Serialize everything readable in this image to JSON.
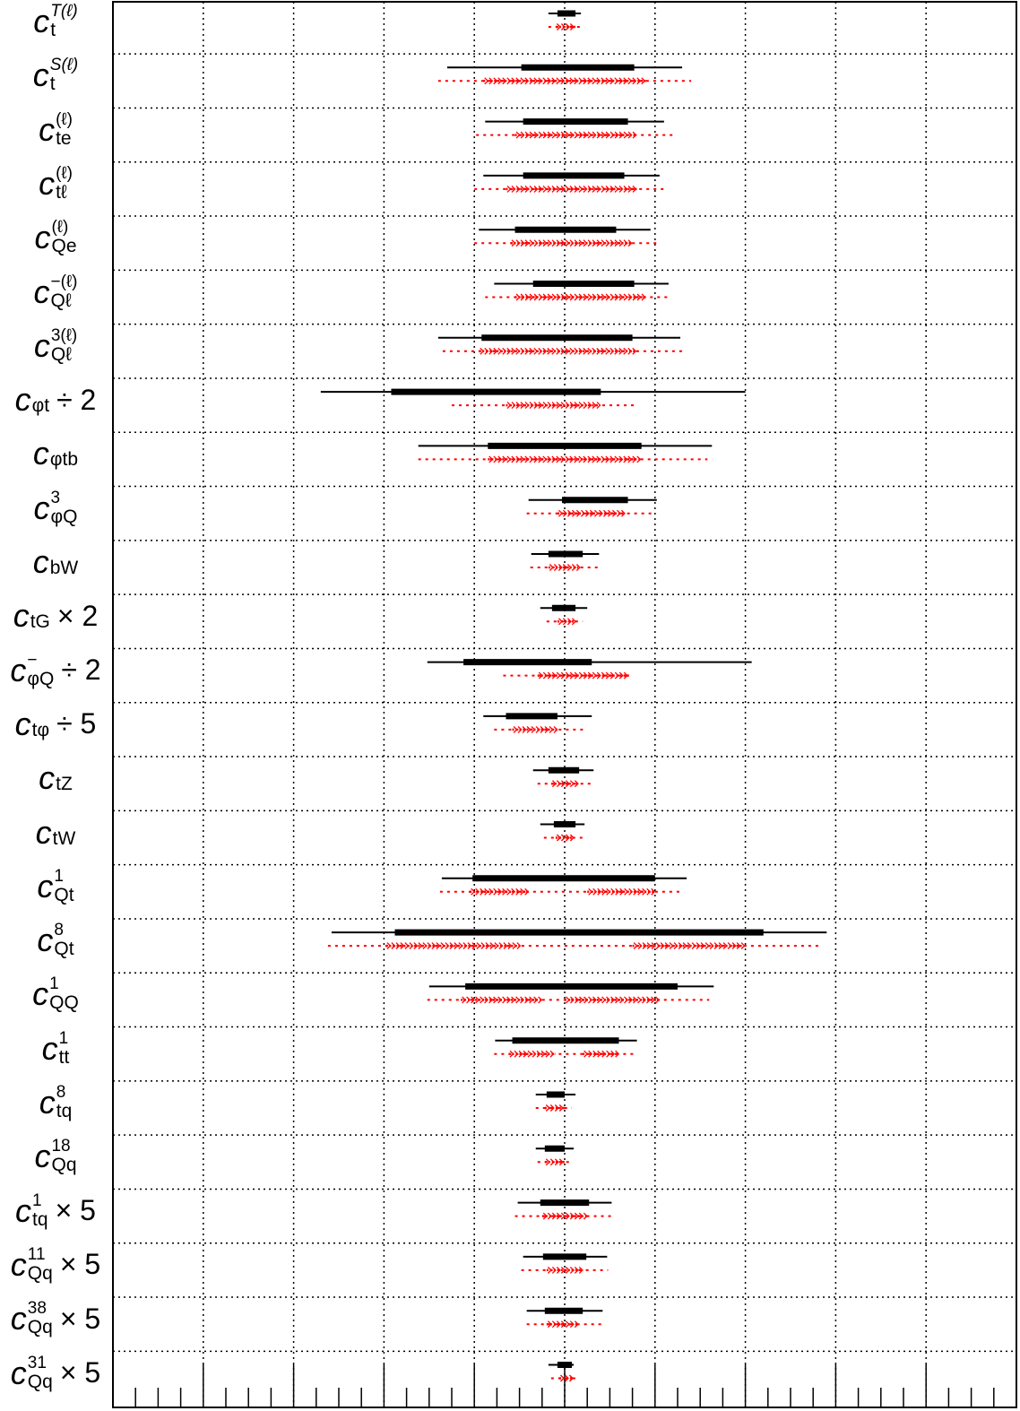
{
  "chart_data": {
    "type": "interval",
    "title": "",
    "xlabel": "",
    "ylabel": "",
    "grid": true,
    "tick_labels_shown": false,
    "xlim": [
      -5,
      5
    ],
    "xtick_major_step": 1,
    "xtick_minor_step": 0.25,
    "marker_styles": {
      "black": "solid black lines: thick = inner interval, thin = outer interval",
      "red": "dotted red lines: arrow segments = inner interval, dotted = outer interval"
    },
    "colors": {
      "black_intervals": "#000000",
      "red_intervals": "#ff0000",
      "grid": "#000000",
      "frame": "#000000"
    },
    "rows": [
      {
        "label": "c_t^T(l)",
        "black": {
          "outer": [
            -0.18,
            0.18
          ],
          "inner": [
            -0.08,
            0.12
          ]
        },
        "red": {
          "outer": [
            -0.18,
            0.2
          ],
          "inner": [
            [
              -0.1,
              0.12
            ]
          ]
        }
      },
      {
        "label": "c_t^S(l)",
        "black": {
          "outer": [
            -1.3,
            1.3
          ],
          "inner": [
            -0.48,
            0.77
          ]
        },
        "red": {
          "outer": [
            -1.4,
            1.4
          ],
          "inner": [
            [
              -0.9,
              0.9
            ]
          ]
        }
      },
      {
        "label": "c_te^(l)",
        "black": {
          "outer": [
            -0.88,
            1.1
          ],
          "inner": [
            -0.46,
            0.7
          ]
        },
        "red": {
          "outer": [
            -0.98,
            1.2
          ],
          "inner": [
            [
              -0.55,
              0.8
            ]
          ]
        }
      },
      {
        "label": "c_tl^(l)",
        "black": {
          "outer": [
            -0.9,
            1.05
          ],
          "inner": [
            -0.46,
            0.66
          ]
        },
        "red": {
          "outer": [
            -1.0,
            1.1
          ],
          "inner": [
            [
              -0.65,
              0.8
            ]
          ]
        }
      },
      {
        "label": "c_Qe^(l)",
        "black": {
          "outer": [
            -0.95,
            0.95
          ],
          "inner": [
            -0.55,
            0.57
          ]
        },
        "red": {
          "outer": [
            -1.0,
            1.05
          ],
          "inner": [
            [
              -0.6,
              0.75
            ]
          ]
        }
      },
      {
        "label": "c_Ql^-(l)",
        "black": {
          "outer": [
            -0.78,
            1.15
          ],
          "inner": [
            -0.35,
            0.77
          ]
        },
        "red": {
          "outer": [
            -0.88,
            1.18
          ],
          "inner": [
            [
              -0.55,
              0.9
            ]
          ]
        }
      },
      {
        "label": "c_Ql^3(l)",
        "black": {
          "outer": [
            -1.4,
            1.28
          ],
          "inner": [
            -0.92,
            0.75
          ]
        },
        "red": {
          "outer": [
            -1.35,
            1.3
          ],
          "inner": [
            [
              -0.95,
              0.8
            ]
          ]
        }
      },
      {
        "label": "c_phit ÷ 2",
        "black": {
          "outer": [
            -2.7,
            2.0
          ],
          "inner": [
            -1.92,
            0.4
          ]
        },
        "red": {
          "outer": [
            -1.25,
            0.8
          ],
          "inner": [
            [
              -0.65,
              0.38
            ]
          ]
        }
      },
      {
        "label": "c_phitb",
        "black": {
          "outer": [
            -1.62,
            1.63
          ],
          "inner": [
            -0.85,
            0.85
          ]
        },
        "red": {
          "outer": [
            -1.62,
            1.58
          ],
          "inner": [
            [
              -0.85,
              0.85
            ]
          ]
        }
      },
      {
        "label": "c_phiQ^3",
        "black": {
          "outer": [
            -0.4,
            1.02
          ],
          "inner": [
            -0.03,
            0.7
          ]
        },
        "red": {
          "outer": [
            -0.42,
            1.0
          ],
          "inner": [
            [
              -0.08,
              0.65
            ]
          ]
        }
      },
      {
        "label": "c_bW",
        "black": {
          "outer": [
            -0.37,
            0.38
          ],
          "inner": [
            -0.18,
            0.2
          ]
        },
        "red": {
          "outer": [
            -0.38,
            0.38
          ],
          "inner": [
            [
              -0.18,
              0.15
            ]
          ]
        }
      },
      {
        "label": "c_tG × 2",
        "black": {
          "outer": [
            -0.27,
            0.25
          ],
          "inner": [
            -0.14,
            0.12
          ]
        },
        "red": {
          "outer": [
            -0.2,
            0.2
          ],
          "inner": [
            [
              -0.08,
              0.12
            ]
          ]
        }
      },
      {
        "label": "c_phiQ^- ÷ 2",
        "black": {
          "outer": [
            -1.52,
            2.07
          ],
          "inner": [
            -1.12,
            0.3
          ]
        },
        "red": {
          "outer": [
            -0.68,
            0.72
          ],
          "inner": [
            [
              -0.3,
              0.72
            ]
          ]
        }
      },
      {
        "label": "c_tphi ÷ 5",
        "black": {
          "outer": [
            -0.9,
            0.3
          ],
          "inner": [
            -0.65,
            -0.08
          ]
        },
        "red": {
          "outer": [
            -0.78,
            0.22
          ],
          "inner": [
            [
              -0.58,
              -0.08
            ]
          ]
        }
      },
      {
        "label": "c_tZ",
        "black": {
          "outer": [
            -0.35,
            0.32
          ],
          "inner": [
            -0.18,
            0.16
          ]
        },
        "red": {
          "outer": [
            -0.3,
            0.3
          ],
          "inner": [
            [
              -0.15,
              0.15
            ]
          ]
        }
      },
      {
        "label": "c_tW",
        "black": {
          "outer": [
            -0.27,
            0.22
          ],
          "inner": [
            -0.12,
            0.12
          ]
        },
        "red": {
          "outer": [
            -0.23,
            0.2
          ],
          "inner": [
            [
              -0.1,
              0.1
            ]
          ]
        }
      },
      {
        "label": "c_Qt^1",
        "black": {
          "outer": [
            -1.36,
            1.35
          ],
          "inner": [
            -1.02,
            1.0
          ]
        },
        "red": {
          "outer": [
            -1.38,
            1.3
          ],
          "inner": [
            [
              -1.05,
              -0.4
            ],
            [
              0.25,
              1.0
            ]
          ]
        }
      },
      {
        "label": "c_Qt^8",
        "black": {
          "outer": [
            -2.58,
            2.9
          ],
          "inner": [
            -1.88,
            2.2
          ]
        },
        "red": {
          "outer": [
            -2.62,
            2.85
          ],
          "inner": [
            [
              -1.98,
              -0.5
            ],
            [
              0.75,
              1.98
            ]
          ]
        }
      },
      {
        "label": "c_QQ^1",
        "black": {
          "outer": [
            -1.5,
            1.65
          ],
          "inner": [
            -1.1,
            1.25
          ]
        },
        "red": {
          "outer": [
            -1.52,
            1.6
          ],
          "inner": [
            [
              -1.15,
              -0.25
            ],
            [
              0.0,
              1.05
            ]
          ]
        }
      },
      {
        "label": "c_tt^1",
        "black": {
          "outer": [
            -0.77,
            0.8
          ],
          "inner": [
            -0.58,
            0.6
          ]
        },
        "red": {
          "outer": [
            -0.78,
            0.78
          ],
          "inner": [
            [
              -0.62,
              -0.1
            ],
            [
              0.2,
              0.58
            ]
          ]
        }
      },
      {
        "label": "c_tq^8",
        "black": {
          "outer": [
            -0.32,
            0.12
          ],
          "inner": [
            -0.2,
            0.0
          ]
        },
        "red": {
          "outer": [
            -0.32,
            0.08
          ],
          "inner": [
            [
              -0.22,
              0.0
            ]
          ]
        }
      },
      {
        "label": "c_Qq^18",
        "black": {
          "outer": [
            -0.32,
            0.1
          ],
          "inner": [
            -0.22,
            0.0
          ]
        },
        "red": {
          "outer": [
            -0.3,
            0.08
          ],
          "inner": [
            [
              -0.22,
              0.0
            ]
          ]
        }
      },
      {
        "label": "c_tq^1 × 5",
        "black": {
          "outer": [
            -0.52,
            0.52
          ],
          "inner": [
            -0.27,
            0.27
          ]
        },
        "red": {
          "outer": [
            -0.55,
            0.52
          ],
          "inner": [
            [
              -0.25,
              0.25
            ]
          ]
        }
      },
      {
        "label": "c_Qq^11 × 5",
        "black": {
          "outer": [
            -0.46,
            0.47
          ],
          "inner": [
            -0.24,
            0.24
          ]
        },
        "red": {
          "outer": [
            -0.48,
            0.48
          ],
          "inner": [
            [
              -0.2,
              0.2
            ]
          ]
        }
      },
      {
        "label": "c_Qq^38 × 5",
        "black": {
          "outer": [
            -0.42,
            0.42
          ],
          "inner": [
            -0.22,
            0.2
          ]
        },
        "red": {
          "outer": [
            -0.42,
            0.42
          ],
          "inner": [
            [
              -0.2,
              0.15
            ]
          ]
        }
      },
      {
        "label": "c_Qq^31 × 5",
        "black": {
          "outer": [
            -0.18,
            0.1
          ],
          "inner": [
            -0.08,
            0.08
          ]
        },
        "red": {
          "outer": [
            -0.15,
            0.15
          ],
          "inner": [
            [
              -0.06,
              0.1
            ]
          ]
        }
      }
    ]
  },
  "labels": [
    {
      "base": "c",
      "sub": "t",
      "sup": "T(ℓ)",
      "sup_italic": true,
      "scale": ""
    },
    {
      "base": "c",
      "sub": "t",
      "sup": "S(ℓ)",
      "sup_italic": true,
      "scale": ""
    },
    {
      "base": "c",
      "sub": "te",
      "sup": "(ℓ)",
      "sup_italic": false,
      "scale": ""
    },
    {
      "base": "c",
      "sub": "tℓ",
      "sup": "(ℓ)",
      "sup_italic": false,
      "scale": ""
    },
    {
      "base": "c",
      "sub": "Qe",
      "sup": "(ℓ)",
      "sup_italic": false,
      "scale": ""
    },
    {
      "base": "c",
      "sub": "Qℓ",
      "sup": "−(ℓ)",
      "sup_italic": false,
      "scale": ""
    },
    {
      "base": "c",
      "sub": "Qℓ",
      "sup": "3(ℓ)",
      "sup_italic": false,
      "scale": ""
    },
    {
      "base": "c",
      "sub": "φt",
      "sup": "",
      "sup_italic": false,
      "scale": "÷ 2"
    },
    {
      "base": "c",
      "sub": "φtb",
      "sup": "",
      "sup_italic": false,
      "scale": ""
    },
    {
      "base": "c",
      "sub": "φQ",
      "sup": "3",
      "sup_italic": false,
      "scale": ""
    },
    {
      "base": "c",
      "sub": "bW",
      "sup": "",
      "sup_italic": false,
      "scale": ""
    },
    {
      "base": "c",
      "sub": "tG",
      "sup": "",
      "sup_italic": false,
      "scale": "× 2"
    },
    {
      "base": "c",
      "sub": "φQ",
      "sup": "−",
      "sup_italic": false,
      "scale": "÷ 2"
    },
    {
      "base": "c",
      "sub": "tφ",
      "sup": "",
      "sup_italic": false,
      "scale": "÷ 5"
    },
    {
      "base": "c",
      "sub": "tZ",
      "sup": "",
      "sup_italic": false,
      "scale": ""
    },
    {
      "base": "c",
      "sub": "tW",
      "sup": "",
      "sup_italic": false,
      "scale": ""
    },
    {
      "base": "c",
      "sub": "Qt",
      "sup": "1",
      "sup_italic": false,
      "scale": ""
    },
    {
      "base": "c",
      "sub": "Qt",
      "sup": "8",
      "sup_italic": false,
      "scale": ""
    },
    {
      "base": "c",
      "sub": "QQ",
      "sup": "1",
      "sup_italic": false,
      "scale": ""
    },
    {
      "base": "c",
      "sub": "tt",
      "sup": "1",
      "sup_italic": false,
      "scale": ""
    },
    {
      "base": "c",
      "sub": "tq",
      "sup": "8",
      "sup_italic": false,
      "scale": ""
    },
    {
      "base": "c",
      "sub": "Qq",
      "sup": "18",
      "sup_italic": false,
      "scale": ""
    },
    {
      "base": "c",
      "sub": "tq",
      "sup": "1",
      "sup_italic": false,
      "scale": "× 5"
    },
    {
      "base": "c",
      "sub": "Qq",
      "sup": "11",
      "sup_italic": false,
      "scale": "× 5"
    },
    {
      "base": "c",
      "sub": "Qq",
      "sup": "38",
      "sup_italic": false,
      "scale": "× 5"
    },
    {
      "base": "c",
      "sub": "Qq",
      "sup": "31",
      "sup_italic": false,
      "scale": "× 5"
    }
  ]
}
